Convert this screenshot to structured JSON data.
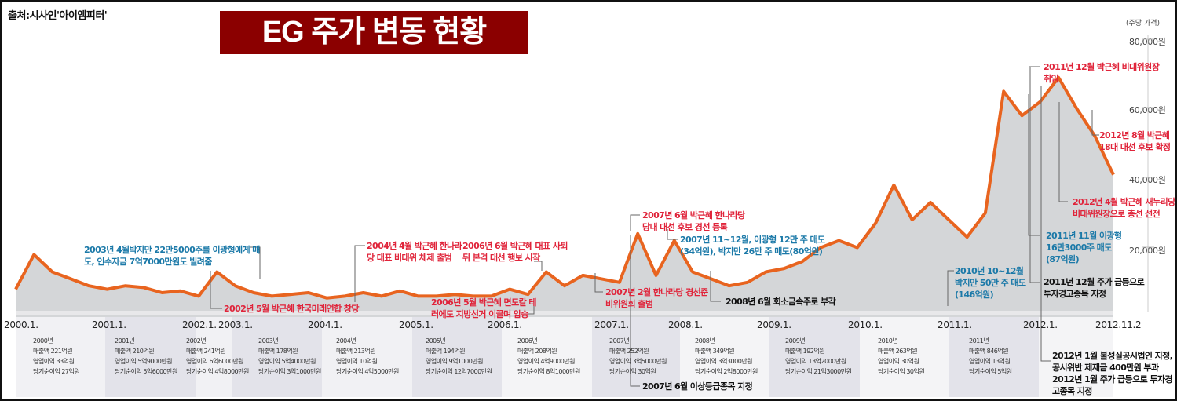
{
  "header": {
    "source": "출처:시사인'아이엠피터'",
    "title": "EG 주가 변동 현황"
  },
  "colors": {
    "title_bg": "#8b0000",
    "line": "#e8641f",
    "area": "#d4d6d8",
    "red_text": "#e0243a",
    "blue_text": "#1b79a8"
  },
  "axis": {
    "unit": "(주당 가격)",
    "y_ticks": [
      "80,000원",
      "60,000원",
      "40,000원",
      "20,000원"
    ],
    "x_ticks": [
      "2000.1.",
      "2001.1.",
      "2002.1.",
      "2003.1.",
      "2004.1.",
      "2005.1.",
      "2006.1.",
      "2007.1.",
      "2008.1.",
      "2009.1.",
      "2010.1.",
      "2011.1.",
      "2012.1.",
      "2012.11.2"
    ]
  },
  "annual": [
    {
      "year": "2000년",
      "sales": "매출액 221억원",
      "op": "영업이익 33억원",
      "net": "당기순이익 27억원"
    },
    {
      "year": "2001년",
      "sales": "매출액 210억원",
      "op": "영업이익 5억9000만원",
      "net": "당기순이익 5억6000만원"
    },
    {
      "year": "2002년",
      "sales": "매출액 241억원",
      "op": "영업이익 6억6000만원",
      "net": "당기순이익 4억8000만원"
    },
    {
      "year": "2003년",
      "sales": "매출액 178억원",
      "op": "영업이익 5억4000만원",
      "net": "당기순이익 3억1000만원"
    },
    {
      "year": "2004년",
      "sales": "매출액 213억원",
      "op": "영업이익 10억원",
      "net": "당기순이익 4억5000만원"
    },
    {
      "year": "2005년",
      "sales": "매출액 194억원",
      "op": "영업이익 9억1000만원",
      "net": "당기순이익 12억7000만원"
    },
    {
      "year": "2006년",
      "sales": "매출액 208억원",
      "op": "영업이익 4억9000만원",
      "net": "당기순이익 8억1000만원"
    },
    {
      "year": "2007년",
      "sales": "매출액 252억원",
      "op": "영업이익 3억5000만원",
      "net": "당기순이익 30억원"
    },
    {
      "year": "2008년",
      "sales": "매출액 349억원",
      "op": "영업이익 3억3000만원",
      "net": "당기순이익 2억8000만원"
    },
    {
      "year": "2009년",
      "sales": "매출액 192억원",
      "op": "영업이익 13억2000만원",
      "net": "당기순이익 21억3000만원"
    },
    {
      "year": "2010년",
      "sales": "매출액 263억원",
      "op": "영업이익 30억원",
      "net": "당기순이익 30억원"
    },
    {
      "year": "2011년",
      "sales": "매출액 846억원",
      "op": "영업이익 13억원",
      "net": "당기순이익 5억원"
    }
  ],
  "annotations": {
    "a2003": [
      "2003년 4월박지만 22만5000주를 이광형에게 매",
      "도, 인수자금 7억7000만원도 빌려줌"
    ],
    "a2002": [
      "2002년 5월 박근혜 한국미래연합 창당"
    ],
    "a2004": [
      "2004년 4월 박근혜 한나라",
      "당 대표 비대위 체제 출범"
    ],
    "a2006_6": [
      "2006년 6월 박근혜 대표 사퇴",
      "뒤 본격 대선 행보 시작"
    ],
    "a2006_5": [
      "2006년 5월 박근혜 면도칼 테",
      "러에도 지방선거 이끌며 압승"
    ],
    "a2007_6": [
      "2007년 6월 박근혜 한나라당",
      "당내 대선 후보 경선 등록"
    ],
    "a2007_11": [
      "2007년 11~12월, 이광형 12만 주 매도",
      "(34억원), 박지만 26만 주 매도(80억원)"
    ],
    "a2007_2": [
      "2007년 2월 한나라당 경선준",
      "비위원회 출범"
    ],
    "a2008_6": [
      "2008년 6월 회소금속주로 부각"
    ],
    "a2007_6b": [
      "2007년 6월 이상등급종목 지정"
    ],
    "a2010": [
      "2010년 10~12월",
      "박지만 50만 주 매도",
      "(146억원)"
    ],
    "a2011_11": [
      "2011년 11월 이광형",
      "16만3000주 매도",
      "(87억원)"
    ],
    "a2011_12b": [
      "2011년 12월 주가 급등으로",
      "투자경고종목 지정"
    ],
    "a2011_12": [
      "2011년 12월 박근혜 비대위원장",
      "취임"
    ],
    "a2012_8": [
      "2012년 8월 박근혜",
      "18대 대선 후보 확정"
    ],
    "a2012_4": [
      "2012년 4월 박근혜 새누리당",
      "비대위원장으로 총선 선전"
    ],
    "a2012_1": [
      "2012년 1월 불성실공시법인 지정,",
      "공시위반 제재금 400만원 부과",
      "2012년 1월 주가 급등으로 투자경",
      "고종목 지정"
    ]
  },
  "chart_data": {
    "type": "area",
    "title": "EG 주가 변동 현황",
    "xlabel": "",
    "ylabel": "주당 가격 (원)",
    "ylim": [
      0,
      85000
    ],
    "grid": false,
    "x": [
      "2000.1",
      "2000.2",
      "2000.4",
      "2000.6",
      "2000.8",
      "2000.10",
      "2001.1",
      "2001.3",
      "2001.6",
      "2001.9",
      "2001.12",
      "2002.1",
      "2002.3",
      "2002.5",
      "2002.7",
      "2002.9",
      "2002.12",
      "2003.3",
      "2003.6",
      "2003.9",
      "2003.12",
      "2004.3",
      "2004.4",
      "2004.6",
      "2004.9",
      "2005.1",
      "2005.6",
      "2005.12",
      "2006.3",
      "2006.5",
      "2006.6",
      "2006.9",
      "2006.12",
      "2007.2",
      "2007.6",
      "2007.9",
      "2007.12",
      "2008.3",
      "2008.6",
      "2008.9",
      "2008.12",
      "2009.3",
      "2009.6",
      "2009.9",
      "2009.12",
      "2010.3",
      "2010.6",
      "2010.10",
      "2010.12",
      "2011.3",
      "2011.6",
      "2011.9",
      "2011.11",
      "2011.12",
      "2012.1",
      "2012.3",
      "2012.4",
      "2012.6",
      "2012.8",
      "2012.10",
      "2012.11.2"
    ],
    "values": [
      8000,
      18000,
      13000,
      11000,
      9000,
      8000,
      9000,
      8500,
      7000,
      7500,
      6000,
      13000,
      9000,
      7000,
      6000,
      6500,
      7000,
      5500,
      6000,
      7000,
      6000,
      7500,
      6000,
      6000,
      6500,
      6000,
      6000,
      8000,
      6500,
      13000,
      9000,
      12000,
      11000,
      10000,
      24000,
      12000,
      22000,
      13000,
      11000,
      9000,
      10000,
      13000,
      14000,
      16000,
      20000,
      22000,
      20000,
      27000,
      38000,
      28000,
      33000,
      28000,
      23000,
      30000,
      65000,
      58000,
      62000,
      69000,
      60000,
      52000,
      41000
    ],
    "y_ticks": [
      20000,
      40000,
      60000,
      80000
    ],
    "legend": []
  }
}
